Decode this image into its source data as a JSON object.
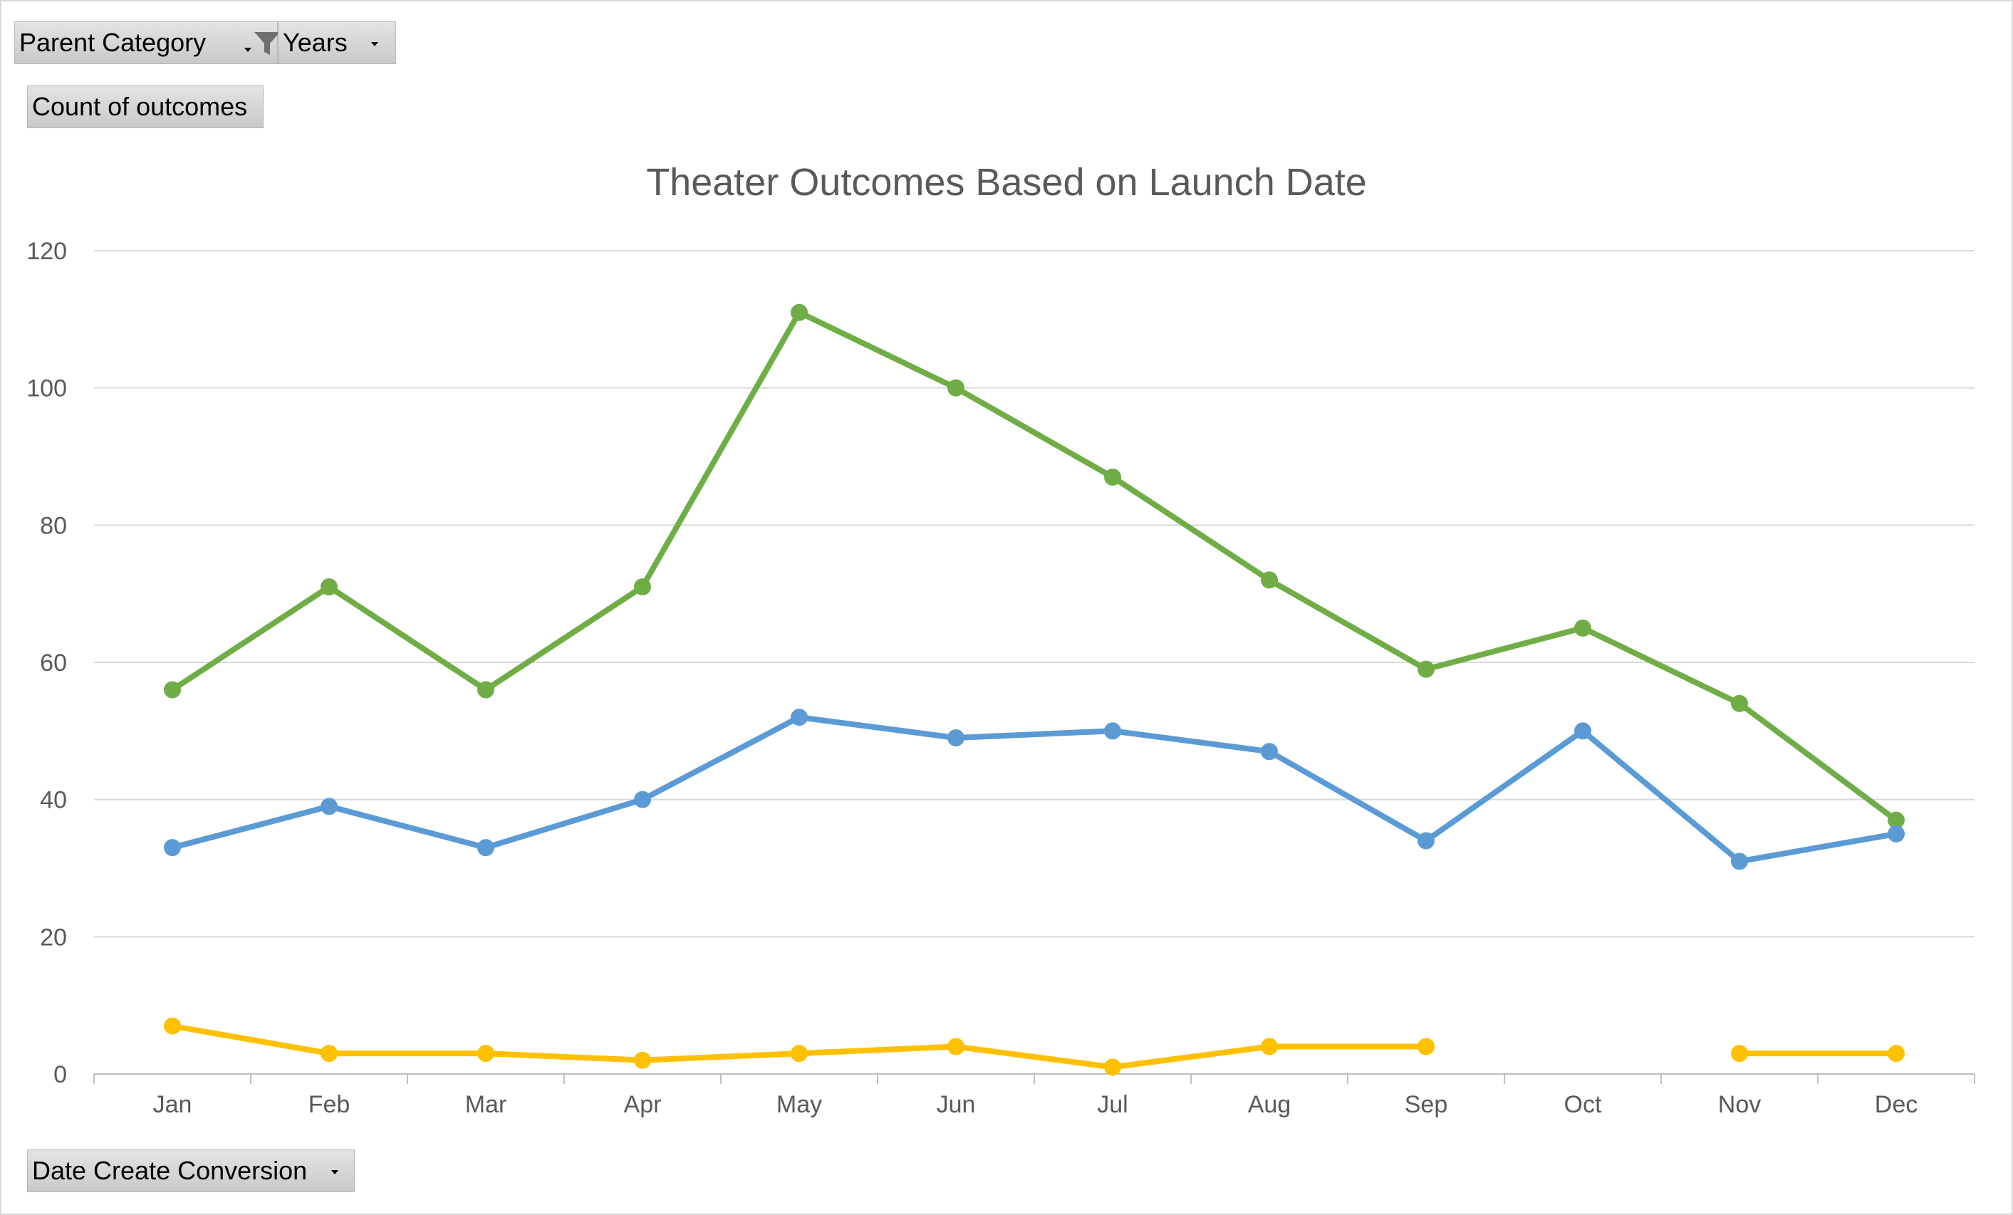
{
  "filters": {
    "parent_category_label": "Parent Category",
    "years_label": "Years",
    "values_label": "Count of outcomes",
    "axis_field_label": "Date Create Conversion"
  },
  "chart_data": {
    "type": "line",
    "title": "Theater Outcomes Based on Launch Date",
    "xlabel": "",
    "ylabel": "",
    "categories": [
      "Jan",
      "Feb",
      "Mar",
      "Apr",
      "May",
      "Jun",
      "Jul",
      "Aug",
      "Sep",
      "Oct",
      "Nov",
      "Dec"
    ],
    "ylim": [
      0,
      120
    ],
    "yticks": [
      0,
      20,
      40,
      60,
      80,
      100,
      120
    ],
    "grid": true,
    "legend": "none",
    "series": [
      {
        "color": "#70ad47",
        "values": [
          56,
          71,
          56,
          71,
          111,
          100,
          87,
          72,
          59,
          65,
          54,
          37
        ]
      },
      {
        "color": "#5b9bd5",
        "values": [
          33,
          39,
          33,
          40,
          52,
          49,
          50,
          47,
          34,
          50,
          31,
          35
        ]
      },
      {
        "color": "#ffc000",
        "values": [
          7,
          3,
          3,
          2,
          3,
          4,
          1,
          4,
          4,
          null,
          3,
          3
        ]
      }
    ]
  }
}
